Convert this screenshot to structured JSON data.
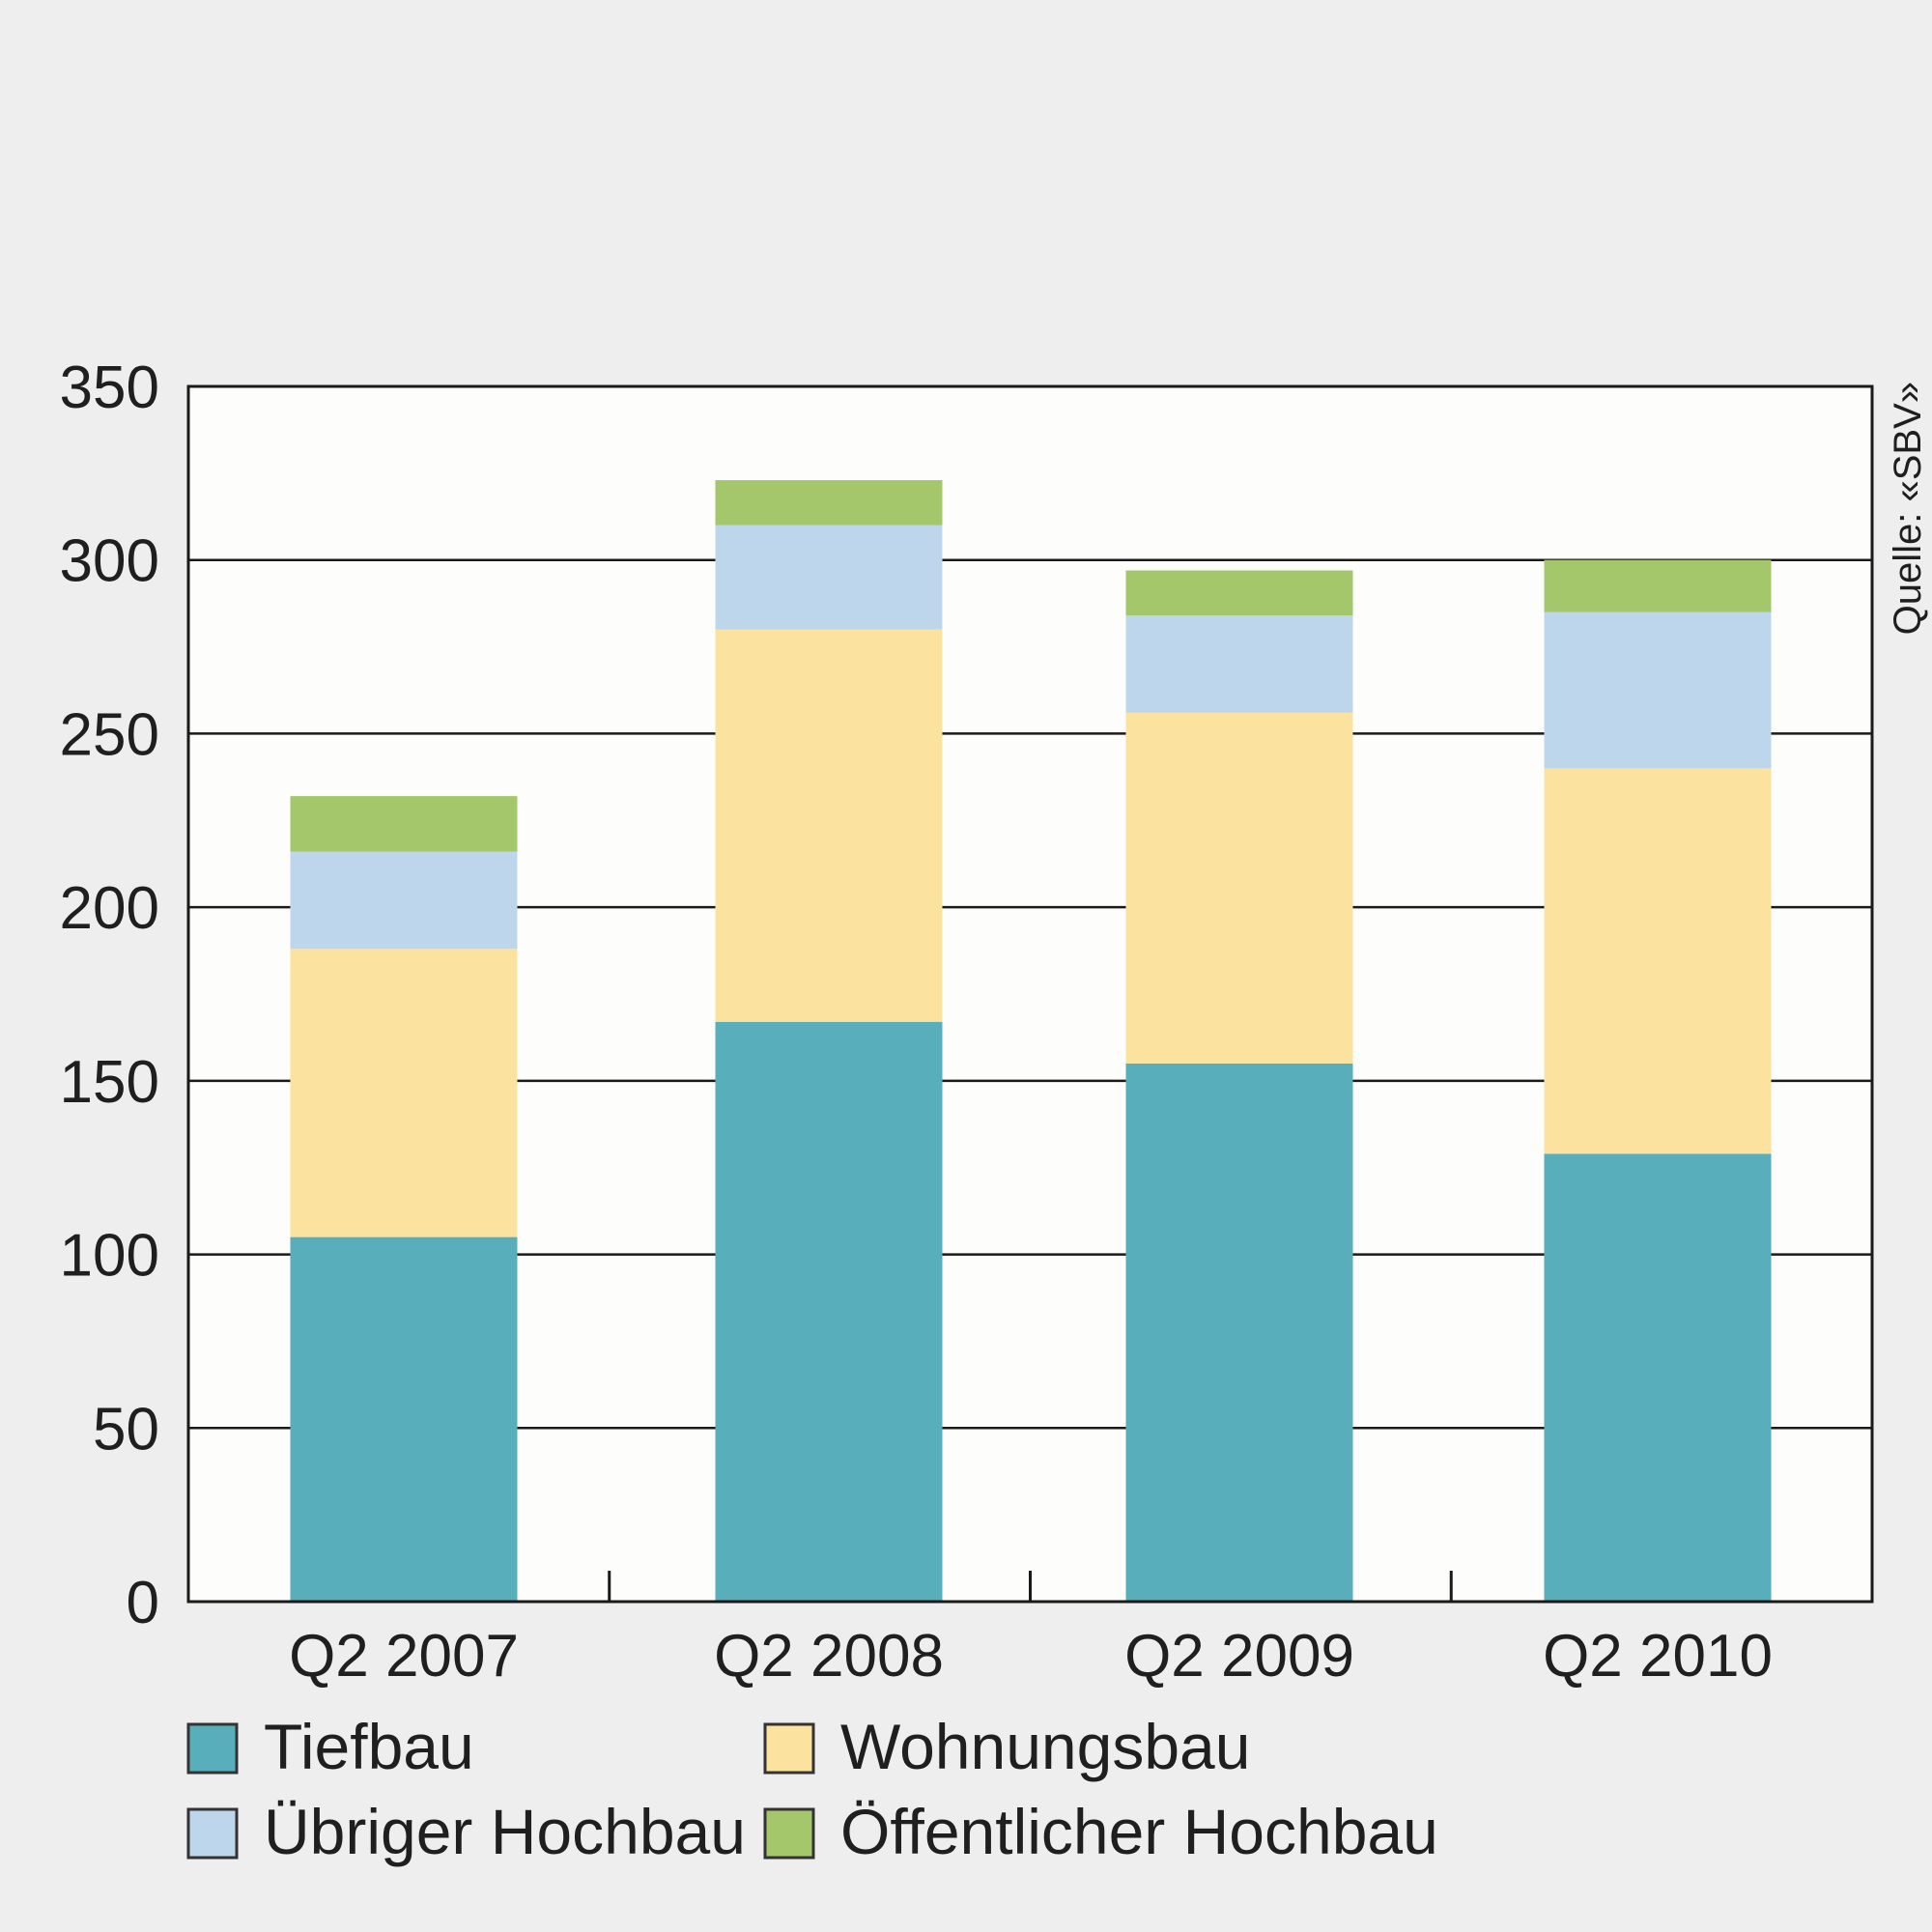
{
  "chart_data": {
    "type": "bar",
    "stacked": true,
    "categories": [
      "Q2 2007",
      "Q2 2008",
      "Q2 2009",
      "Q2 2010"
    ],
    "series": [
      {
        "name": "Tiefbau",
        "color": "#58afbb",
        "values": [
          105,
          167,
          155,
          129
        ]
      },
      {
        "name": "Wohnungsbau",
        "color": "#fce29f",
        "values": [
          83,
          113,
          101,
          111
        ]
      },
      {
        "name": "Übriger Hochbau",
        "color": "#bed6ec",
        "values": [
          28,
          30,
          28,
          45
        ]
      },
      {
        "name": "Öffentlicher Hochbau",
        "color": "#a4c76c",
        "values": [
          16,
          13,
          13,
          15
        ]
      }
    ],
    "ylim": [
      0,
      350
    ],
    "yticks": [
      "0",
      "50",
      "100",
      "150",
      "200",
      "250",
      "300",
      "350"
    ],
    "grid": true,
    "legend_position": "bottom",
    "source": "Quelle: «SBV»"
  }
}
